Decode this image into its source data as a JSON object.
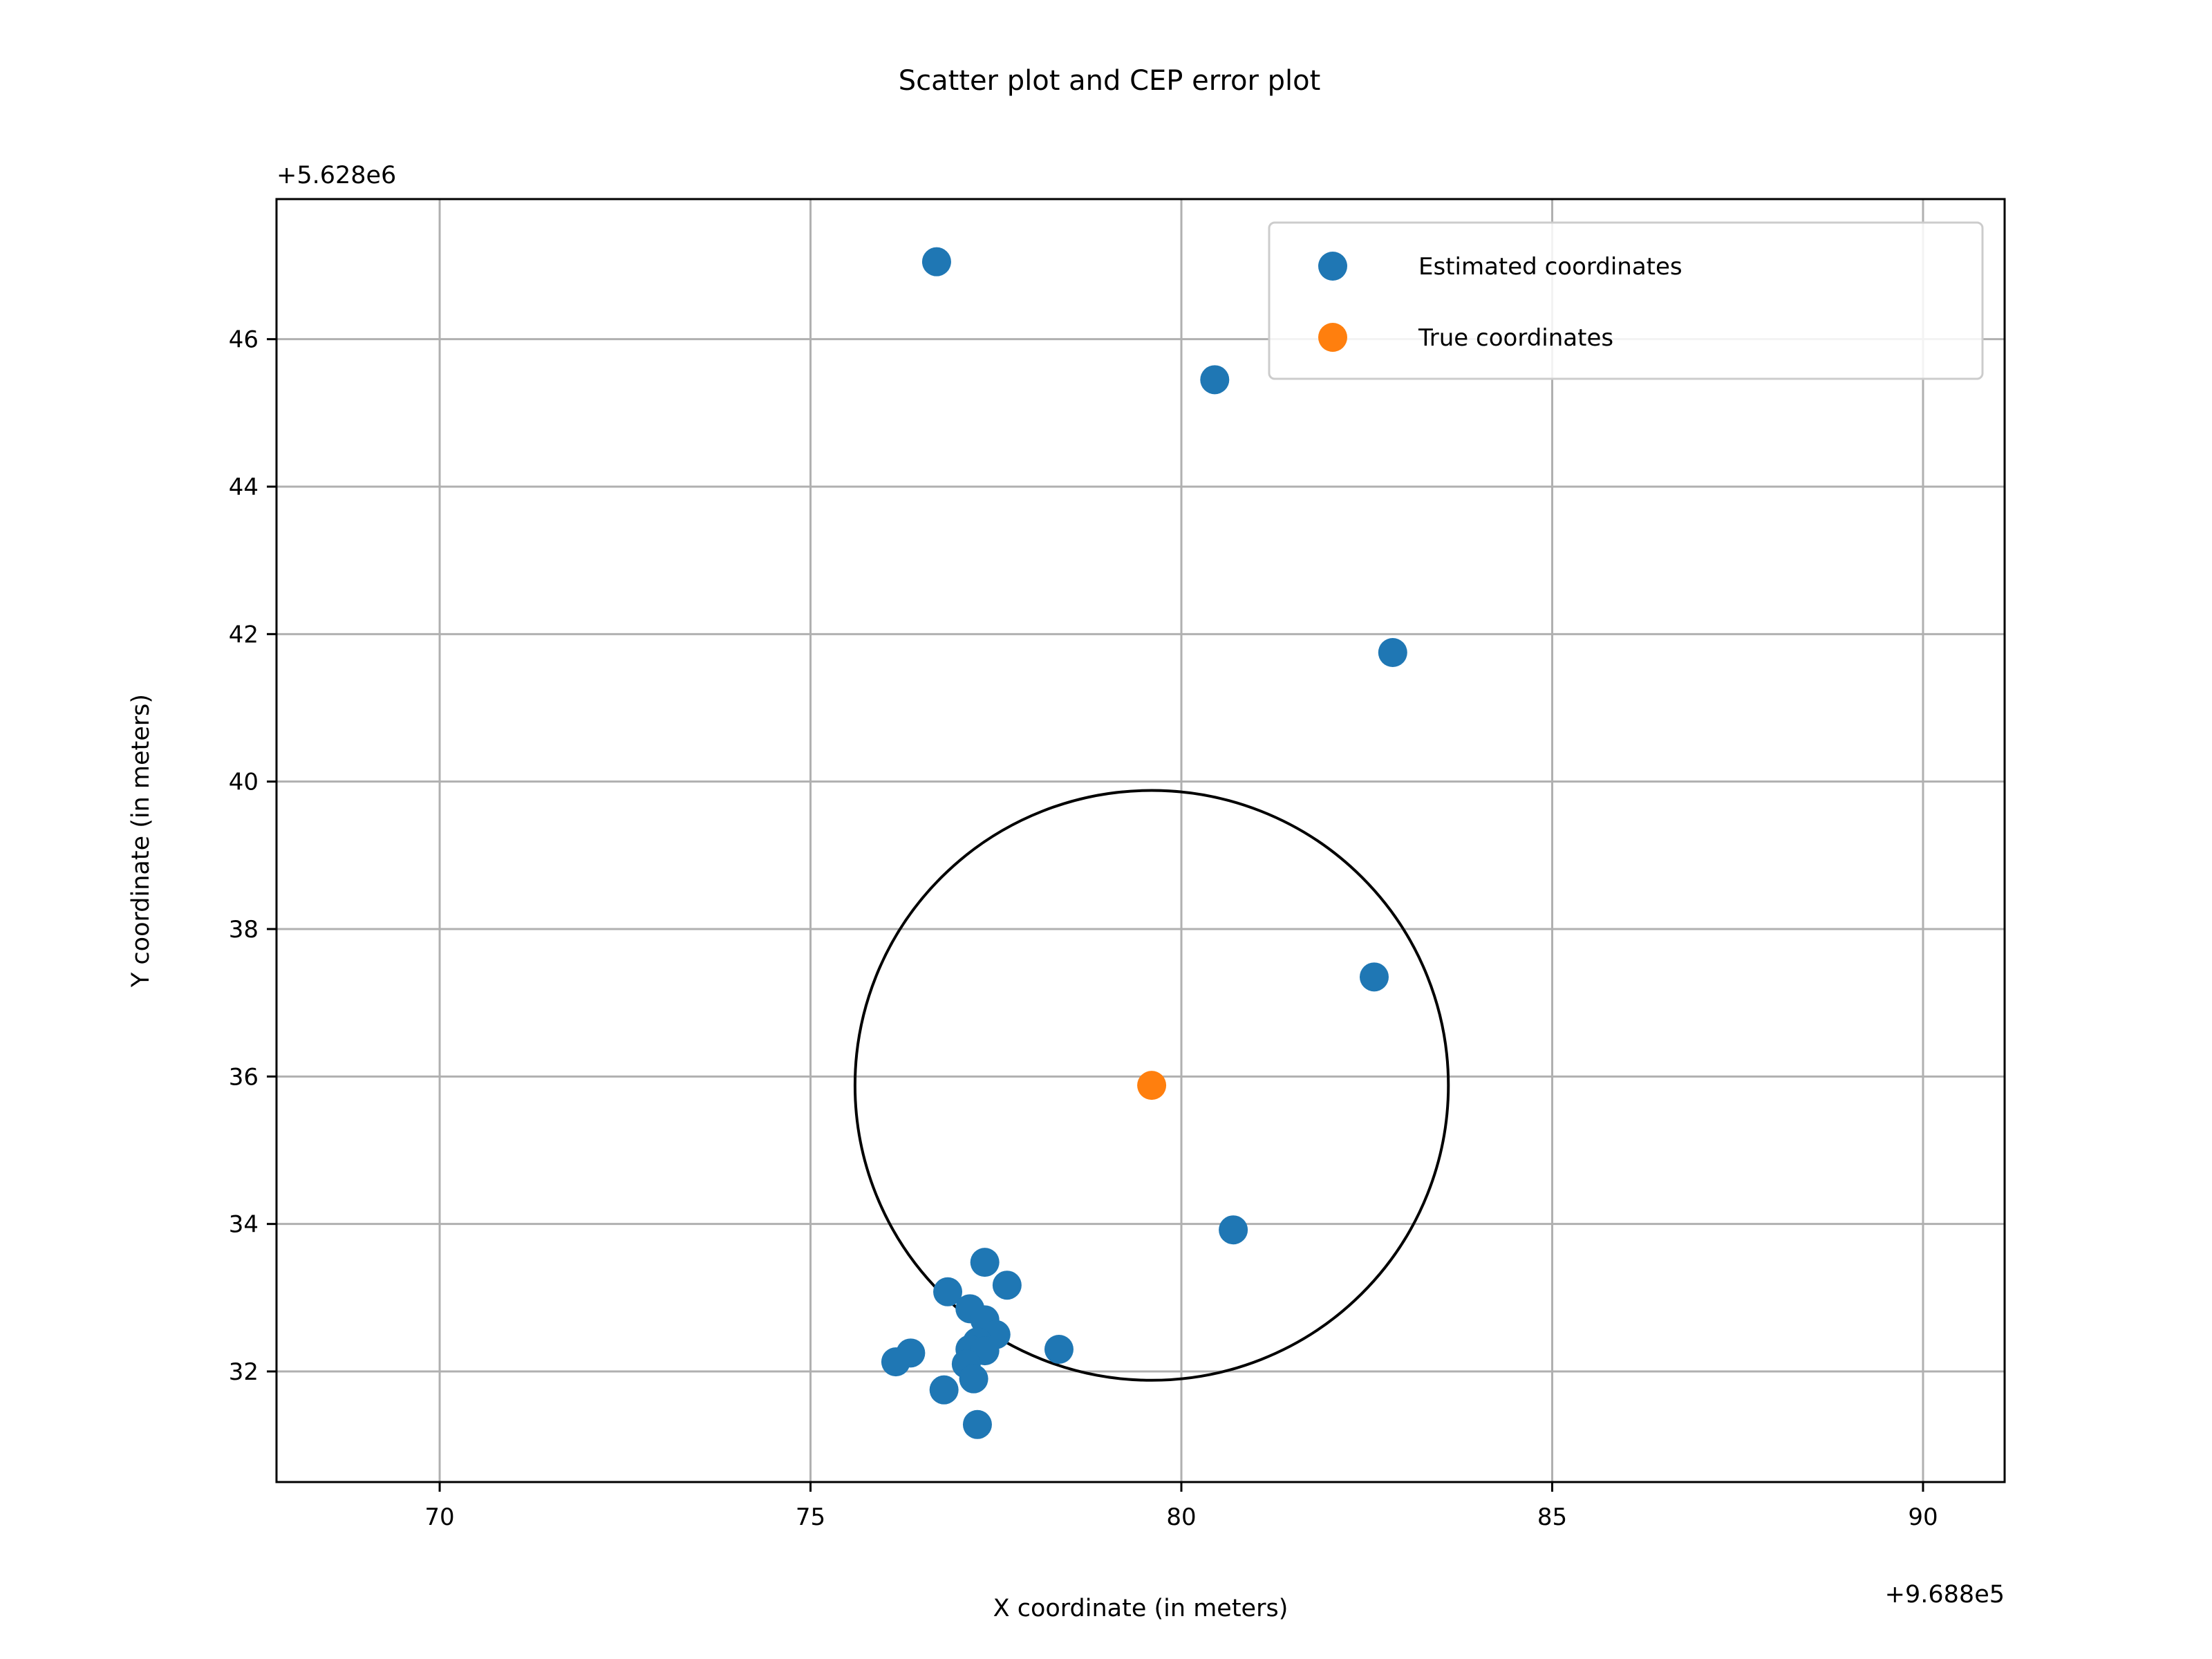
{
  "chart_data": {
    "type": "scatter",
    "title": "Scatter plot and CEP error plot",
    "xlabel": "X coordinate (in meters)",
    "ylabel": "Y coordinate (in meters)",
    "x_offset_label": "+9.688e5",
    "y_offset_label": "+5.628e6",
    "xlim": [
      67.8,
      91.1
    ],
    "ylim": [
      30.5,
      47.9
    ],
    "x_ticks": [
      70,
      75,
      80,
      85,
      90
    ],
    "y_ticks": [
      32,
      34,
      36,
      38,
      40,
      42,
      44,
      46
    ],
    "grid": true,
    "legend_position": "top-right",
    "colors": {
      "estimated": "#1f77b4",
      "true": "#ff7f0e",
      "circle": "#000000",
      "grid": "#b0b0b0"
    },
    "series": [
      {
        "name": "Estimated coordinates",
        "points": [
          [
            76.7,
            47.05
          ],
          [
            80.45,
            45.45
          ],
          [
            82.85,
            41.75
          ],
          [
            82.6,
            37.35
          ],
          [
            80.7,
            33.92
          ],
          [
            77.35,
            33.48
          ],
          [
            77.65,
            33.17
          ],
          [
            76.85,
            33.08
          ],
          [
            77.15,
            32.85
          ],
          [
            77.35,
            32.7
          ],
          [
            77.5,
            32.5
          ],
          [
            77.25,
            32.4
          ],
          [
            77.15,
            32.3
          ],
          [
            77.35,
            32.28
          ],
          [
            78.35,
            32.3
          ],
          [
            76.35,
            32.25
          ],
          [
            76.15,
            32.13
          ],
          [
            77.1,
            32.1
          ],
          [
            77.2,
            31.9
          ],
          [
            76.8,
            31.75
          ],
          [
            77.25,
            31.28
          ]
        ]
      },
      {
        "name": "True coordinates",
        "points": [
          [
            79.6,
            35.88
          ]
        ]
      }
    ],
    "cep_circle": {
      "center": [
        79.6,
        35.88
      ],
      "radius": 4.0
    }
  }
}
